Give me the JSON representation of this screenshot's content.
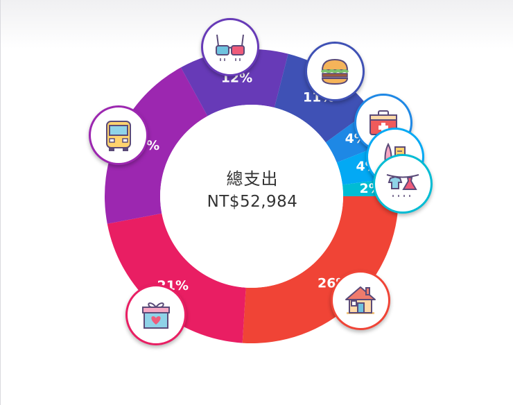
{
  "chart_data": {
    "type": "pie",
    "center_title": "總支出",
    "center_total": "NT$52,984",
    "slices": [
      {
        "label": "26%",
        "value": 26,
        "color": "#f04436",
        "icon": "house-icon"
      },
      {
        "label": "21%",
        "value": 21,
        "color": "#e91e63",
        "icon": "gift-box-icon"
      },
      {
        "label": "20%",
        "value": 20,
        "color": "#9c27b0",
        "icon": "bus-icon"
      },
      {
        "label": "12%",
        "value": 12,
        "color": "#673ab7",
        "icon": "3d-glasses-icon"
      },
      {
        "label": "11%",
        "value": 11,
        "color": "#3f51b5",
        "icon": "burger-icon"
      },
      {
        "label": "4%",
        "value": 4,
        "color": "#1e88e5",
        "icon": "first-aid-kit-icon"
      },
      {
        "label": "4%",
        "value": 4,
        "color": "#03a9f4",
        "icon": "comb-icon"
      },
      {
        "label": "2%",
        "value": 2,
        "color": "#00bcd4",
        "icon": "laundry-clothes-icon"
      }
    ]
  }
}
